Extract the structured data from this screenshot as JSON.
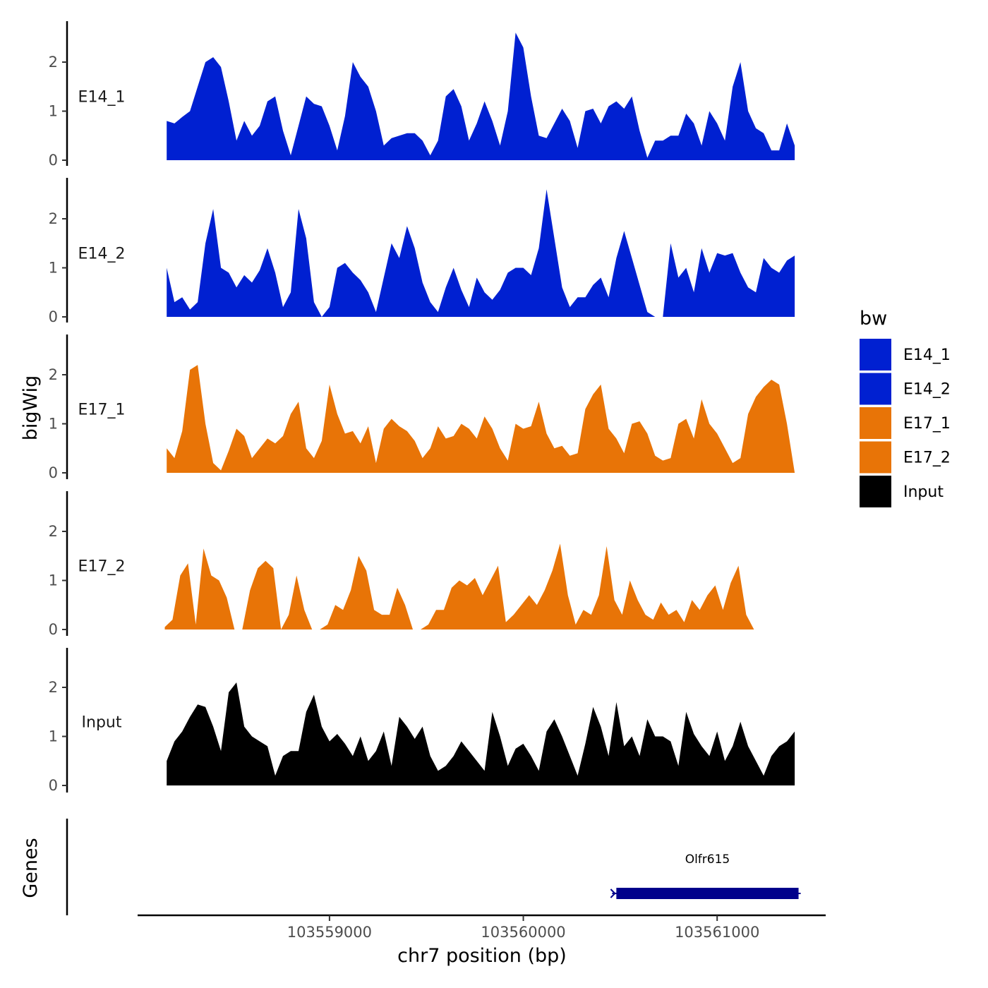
{
  "chart_data": {
    "type": "area",
    "title": "",
    "xlabel": "chr7 position (bp)",
    "ylabel": "bigWig",
    "genes_label": "Genes",
    "xlim": [
      103558010,
      103561560
    ],
    "xticks": [
      103559000,
      103560000,
      103561000
    ],
    "xtick_labels": [
      "103559000",
      "103560000",
      "103561000"
    ],
    "ylim": [
      0,
      2.8
    ],
    "yticks": [
      0,
      1,
      2
    ],
    "ytick_labels": [
      "0",
      "1",
      "2"
    ],
    "legend": {
      "title": "bw",
      "position": "right",
      "entries": [
        {
          "label": "E14_1",
          "color": "#0020d1"
        },
        {
          "label": "E14_2",
          "color": "#0020d1"
        },
        {
          "label": "E17_1",
          "color": "#e87407"
        },
        {
          "label": "E17_2",
          "color": "#e87407"
        },
        {
          "label": "Input",
          "color": "#000000"
        }
      ]
    },
    "series": [
      {
        "name": "E14_1",
        "color": "#0020d1",
        "x": [
          103558160,
          103558200,
          103558240,
          103558280,
          103558320,
          103558360,
          103558400,
          103558440,
          103558480,
          103558520,
          103558560,
          103558600,
          103558640,
          103558680,
          103558720,
          103558760,
          103558800,
          103558840,
          103558880,
          103558920,
          103558960,
          103559000,
          103559040,
          103559080,
          103559120,
          103559160,
          103559200,
          103559240,
          103559280,
          103559320,
          103559360,
          103559400,
          103559440,
          103559480,
          103559520,
          103559560,
          103559600,
          103559640,
          103559680,
          103559720,
          103559760,
          103559800,
          103559840,
          103559880,
          103559920,
          103559960,
          103560000,
          103560040,
          103560080,
          103560120,
          103560160,
          103560200,
          103560240,
          103560280,
          103560320,
          103560360,
          103560400,
          103560440,
          103560480,
          103560520,
          103560560,
          103560600,
          103560640,
          103560680,
          103560720,
          103560760,
          103560800,
          103560840,
          103560880,
          103560920,
          103560960,
          103561000,
          103561040,
          103561080,
          103561120,
          103561160,
          103561200,
          103561240,
          103561280,
          103561320,
          103561360,
          103561400
        ],
        "values": [
          0.8,
          0.75,
          0.88,
          1.0,
          1.5,
          2.0,
          2.1,
          1.9,
          1.2,
          0.4,
          0.8,
          0.5,
          0.7,
          1.2,
          1.3,
          0.6,
          0.1,
          0.7,
          1.3,
          1.15,
          1.1,
          0.7,
          0.2,
          0.9,
          2.0,
          1.7,
          1.5,
          1.0,
          0.3,
          0.45,
          0.5,
          0.55,
          0.55,
          0.4,
          0.1,
          0.4,
          1.3,
          1.45,
          1.1,
          0.4,
          0.75,
          1.2,
          0.8,
          0.3,
          1.0,
          2.6,
          2.3,
          1.3,
          0.5,
          0.45,
          0.75,
          1.05,
          0.8,
          0.25,
          1.0,
          1.05,
          0.75,
          1.1,
          1.2,
          1.05,
          1.3,
          0.6,
          0.05,
          0.4,
          0.4,
          0.5,
          0.5,
          0.95,
          0.75,
          0.3,
          1.0,
          0.75,
          0.4,
          1.5,
          2.0,
          1.0,
          0.65,
          0.55,
          0.2,
          0.2,
          0.75,
          0.3
        ]
      },
      {
        "name": "E14_2",
        "color": "#0020d1",
        "x": [
          103558160,
          103558200,
          103558240,
          103558280,
          103558320,
          103558360,
          103558400,
          103558440,
          103558480,
          103558520,
          103558560,
          103558600,
          103558640,
          103558680,
          103558720,
          103558760,
          103558800,
          103558840,
          103558880,
          103558920,
          103558960,
          103559000,
          103559040,
          103559080,
          103559120,
          103559160,
          103559200,
          103559240,
          103559280,
          103559320,
          103559360,
          103559400,
          103559440,
          103559480,
          103559520,
          103559560,
          103559600,
          103559640,
          103559680,
          103559720,
          103559760,
          103559800,
          103559840,
          103559880,
          103559920,
          103559960,
          103560000,
          103560040,
          103560080,
          103560120,
          103560160,
          103560200,
          103560240,
          103560280,
          103560320,
          103560360,
          103560400,
          103560440,
          103560480,
          103560520,
          103560560,
          103560600,
          103560640,
          103560680,
          103560720,
          103560760,
          103560800,
          103560840,
          103560880,
          103560920,
          103560960,
          103561000,
          103561040,
          103561080,
          103561120,
          103561160,
          103561200,
          103561240,
          103561280,
          103561320,
          103561360,
          103561400
        ],
        "values": [
          1.0,
          0.3,
          0.4,
          0.15,
          0.3,
          1.5,
          2.2,
          1.0,
          0.9,
          0.6,
          0.85,
          0.7,
          0.95,
          1.4,
          0.9,
          0.2,
          0.5,
          2.2,
          1.6,
          0.3,
          0.0,
          0.2,
          1.0,
          1.1,
          0.9,
          0.75,
          0.5,
          0.1,
          0.8,
          1.5,
          1.2,
          1.85,
          1.4,
          0.7,
          0.3,
          0.1,
          0.6,
          1.0,
          0.55,
          0.2,
          0.8,
          0.5,
          0.35,
          0.55,
          0.9,
          1.0,
          1.0,
          0.85,
          1.4,
          2.6,
          1.6,
          0.6,
          0.2,
          0.4,
          0.4,
          0.65,
          0.8,
          0.4,
          1.2,
          1.75,
          1.2,
          0.65,
          0.1,
          0.0,
          0.0,
          1.5,
          0.8,
          1.0,
          0.5,
          1.4,
          0.9,
          1.3,
          1.25,
          1.3,
          0.9,
          0.6,
          0.5,
          1.2,
          1.0,
          0.9,
          1.15,
          1.25
        ]
      },
      {
        "name": "E17_1",
        "color": "#e87407",
        "x": [
          103558160,
          103558200,
          103558240,
          103558280,
          103558320,
          103558360,
          103558400,
          103558440,
          103558480,
          103558520,
          103558560,
          103558600,
          103558640,
          103558680,
          103558720,
          103558760,
          103558800,
          103558840,
          103558880,
          103558920,
          103558960,
          103559000,
          103559040,
          103559080,
          103559120,
          103559160,
          103559200,
          103559240,
          103559280,
          103559320,
          103559360,
          103559400,
          103559440,
          103559480,
          103559520,
          103559560,
          103559600,
          103559640,
          103559680,
          103559720,
          103559760,
          103559800,
          103559840,
          103559880,
          103559920,
          103559960,
          103560000,
          103560040,
          103560080,
          103560120,
          103560160,
          103560200,
          103560240,
          103560280,
          103560320,
          103560360,
          103560400,
          103560440,
          103560480,
          103560520,
          103560560,
          103560600,
          103560640,
          103560680,
          103560720,
          103560760,
          103560800,
          103560840,
          103560880,
          103560920,
          103560960,
          103561000,
          103561040,
          103561080,
          103561120,
          103561160,
          103561200,
          103561240,
          103561280,
          103561320,
          103561360,
          103561400
        ],
        "values": [
          0.5,
          0.3,
          0.85,
          2.1,
          2.2,
          1.0,
          0.2,
          0.05,
          0.45,
          0.9,
          0.75,
          0.3,
          0.5,
          0.7,
          0.6,
          0.75,
          1.2,
          1.45,
          0.5,
          0.3,
          0.65,
          1.8,
          1.2,
          0.8,
          0.85,
          0.6,
          0.95,
          0.2,
          0.9,
          1.1,
          0.95,
          0.85,
          0.65,
          0.3,
          0.5,
          0.95,
          0.7,
          0.75,
          1.0,
          0.9,
          0.7,
          1.15,
          0.9,
          0.5,
          0.25,
          1.0,
          0.9,
          0.95,
          1.45,
          0.8,
          0.5,
          0.55,
          0.35,
          0.4,
          1.3,
          1.6,
          1.8,
          0.9,
          0.7,
          0.4,
          1.0,
          1.05,
          0.8,
          0.35,
          0.25,
          0.3,
          1.0,
          1.1,
          0.7,
          1.5,
          1.0,
          0.8,
          0.5,
          0.2,
          0.3,
          1.2,
          1.55,
          1.75,
          1.9,
          1.8,
          1.0,
          0.0
        ]
      },
      {
        "name": "E17_2",
        "color": "#e87407",
        "x": [
          103558150,
          103558190,
          103558230,
          103558270,
          103558310,
          103558350,
          103558390,
          103558430,
          103558470,
          103558510,
          103558550,
          103558590,
          103558630,
          103558670,
          103558710,
          103558750,
          103558790,
          103558830,
          103558870,
          103558910,
          103558950,
          103558990,
          103559030,
          103559070,
          103559110,
          103559150,
          103559190,
          103559230,
          103559270,
          103559310,
          103559350,
          103559390,
          103559430,
          103559470,
          103559510,
          103559550,
          103559590,
          103559630,
          103559670,
          103559710,
          103559750,
          103559790,
          103559830,
          103559870,
          103559910,
          103559950,
          103559990,
          103560030,
          103560070,
          103560110,
          103560150,
          103560190,
          103560230,
          103560270,
          103560310,
          103560350,
          103560390,
          103560430,
          103560470,
          103560510,
          103560550,
          103560590,
          103560630,
          103560670,
          103560710,
          103560750,
          103560790,
          103560830,
          103560870,
          103560910,
          103560950,
          103560990,
          103561030,
          103561070,
          103561110,
          103561150,
          103561190,
          103561230,
          103561270,
          103561310,
          103561350,
          103561390
        ],
        "values": [
          0.05,
          0.2,
          1.1,
          1.35,
          0.1,
          1.65,
          1.1,
          1.0,
          0.65,
          0.0,
          0.0,
          0.8,
          1.25,
          1.4,
          1.25,
          0.0,
          0.3,
          1.1,
          0.4,
          0.0,
          0.0,
          0.1,
          0.5,
          0.4,
          0.8,
          1.5,
          1.2,
          0.4,
          0.3,
          0.3,
          0.85,
          0.5,
          0.0,
          0.0,
          0.1,
          0.4,
          0.4,
          0.85,
          1.0,
          0.9,
          1.05,
          0.7,
          1.0,
          1.3,
          0.15,
          0.3,
          0.5,
          0.7,
          0.5,
          0.8,
          1.2,
          1.75,
          0.7,
          0.1,
          0.4,
          0.3,
          0.7,
          1.7,
          0.6,
          0.3,
          1.0,
          0.6,
          0.3,
          0.2,
          0.55,
          0.3,
          0.4,
          0.15,
          0.6,
          0.4,
          0.7,
          0.9,
          0.4,
          0.95,
          1.3,
          0.3,
          0.0,
          0.0,
          0.0,
          0.0,
          0.0,
          0.0
        ]
      },
      {
        "name": "Input",
        "color": "#000000",
        "x": [
          103558160,
          103558200,
          103558240,
          103558280,
          103558320,
          103558360,
          103558400,
          103558440,
          103558480,
          103558520,
          103558560,
          103558600,
          103558640,
          103558680,
          103558720,
          103558760,
          103558800,
          103558840,
          103558880,
          103558920,
          103558960,
          103559000,
          103559040,
          103559080,
          103559120,
          103559160,
          103559200,
          103559240,
          103559280,
          103559320,
          103559360,
          103559400,
          103559440,
          103559480,
          103559520,
          103559560,
          103559600,
          103559640,
          103559680,
          103559720,
          103559760,
          103559800,
          103559840,
          103559880,
          103559920,
          103559960,
          103560000,
          103560040,
          103560080,
          103560120,
          103560160,
          103560200,
          103560240,
          103560280,
          103560320,
          103560360,
          103560400,
          103560440,
          103560480,
          103560520,
          103560560,
          103560600,
          103560640,
          103560680,
          103560720,
          103560760,
          103560800,
          103560840,
          103560880,
          103560920,
          103560960,
          103561000,
          103561040,
          103561080,
          103561120,
          103561160,
          103561200,
          103561240,
          103561280,
          103561320,
          103561360,
          103561400
        ],
        "values": [
          0.5,
          0.9,
          1.1,
          1.4,
          1.65,
          1.6,
          1.2,
          0.7,
          1.9,
          2.1,
          1.2,
          1.0,
          0.9,
          0.8,
          0.2,
          0.6,
          0.7,
          0.7,
          1.5,
          1.85,
          1.2,
          0.9,
          1.05,
          0.85,
          0.6,
          1.0,
          0.5,
          0.7,
          1.1,
          0.4,
          1.4,
          1.2,
          0.95,
          1.2,
          0.6,
          0.3,
          0.4,
          0.6,
          0.9,
          0.7,
          0.5,
          0.3,
          1.5,
          1.0,
          0.4,
          0.75,
          0.85,
          0.6,
          0.3,
          1.1,
          1.35,
          1.0,
          0.6,
          0.2,
          0.85,
          1.6,
          1.2,
          0.6,
          1.7,
          0.8,
          1.0,
          0.6,
          1.35,
          1.0,
          1.0,
          0.9,
          0.4,
          1.5,
          1.05,
          0.8,
          0.6,
          1.1,
          0.5,
          0.8,
          1.3,
          0.8,
          0.5,
          0.2,
          0.6,
          0.8,
          0.9,
          1.1
        ]
      }
    ],
    "genes": [
      {
        "name": "Olfr615",
        "start": 103560480,
        "end": 103561420,
        "strand": "+",
        "color": "#00008b"
      }
    ]
  }
}
